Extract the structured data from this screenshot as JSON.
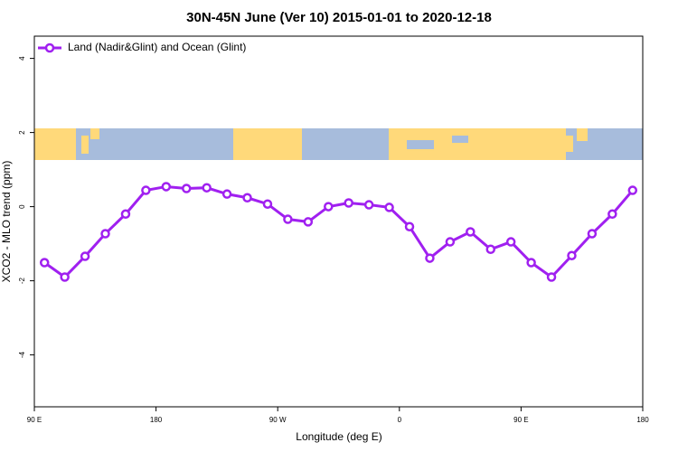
{
  "chart_data": {
    "type": "line",
    "title": "30N-45N June (Ver 10)   2015-01-01 to 2020-12-18",
    "x_label": "Longitude (deg E)",
    "y_label": "XCO2 - MLO trend (ppm)",
    "x": [
      97.5,
      112.5,
      127.5,
      142.5,
      157.5,
      172.5,
      187.5,
      202.5,
      217.5,
      232.5,
      247.5,
      262.5,
      277.5,
      292.5,
      307.5,
      322.5,
      337.5,
      352.5,
      367.5,
      382.5,
      397.5,
      412.5,
      427.5,
      442.5,
      457.5,
      472.5,
      487.5,
      502.5,
      517.5,
      532.5
    ],
    "series": [
      {
        "name": "Land (Nadir&Glint) and Ocean (Glint)",
        "color": "#a020f0",
        "values": [
          -1.51,
          -1.9,
          -1.34,
          -0.73,
          -0.2,
          0.44,
          0.54,
          0.49,
          0.51,
          0.34,
          0.24,
          0.07,
          -0.34,
          -0.41,
          0.0,
          0.1,
          0.05,
          -0.02,
          -0.54,
          -1.39,
          -0.95,
          -0.68,
          -1.15,
          -0.95,
          -1.51,
          -1.9,
          -1.32,
          -0.73,
          -0.2,
          0.44
        ]
      }
    ],
    "xlim": [
      90,
      540
    ],
    "xticks": [
      {
        "value": 90,
        "label": "90 E"
      },
      180,
      {
        "value": 270,
        "label": "90 W"
      },
      {
        "value": 360,
        "label": "0"
      },
      {
        "value": 450,
        "label": "90 E"
      },
      {
        "value": 540,
        "label": "180"
      }
    ],
    "ylim": [
      -5.4,
      4.6
    ],
    "yticks": [
      -4,
      -2,
      0,
      2,
      4
    ],
    "legend": "top-left"
  }
}
